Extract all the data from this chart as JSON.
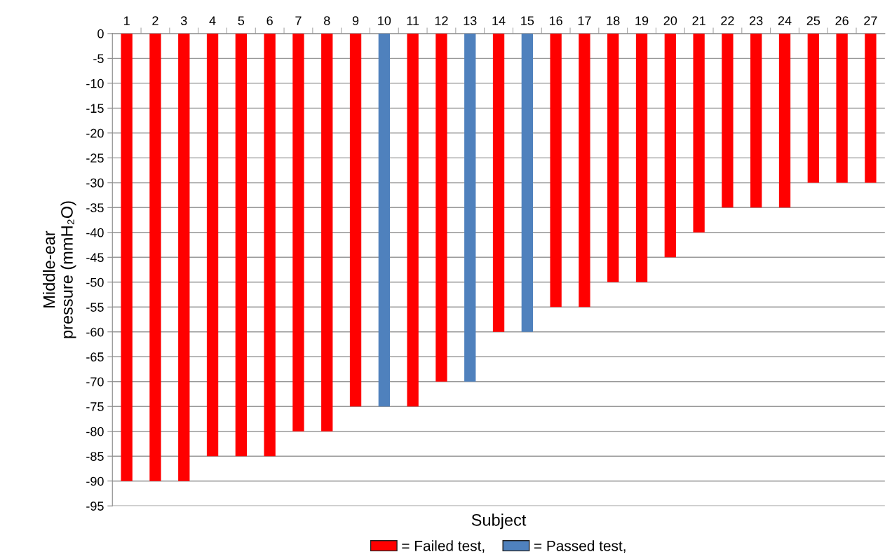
{
  "chart_data": {
    "type": "bar",
    "xlabel": "Subject",
    "ylabel": "Middle-ear\npressure (mmH₂O)",
    "categories": [
      "1",
      "2",
      "3",
      "4",
      "5",
      "6",
      "7",
      "8",
      "9",
      "10",
      "11",
      "12",
      "13",
      "14",
      "15",
      "16",
      "17",
      "18",
      "19",
      "20",
      "21",
      "22",
      "23",
      "24",
      "25",
      "26",
      "27"
    ],
    "stacked": true,
    "series": [
      {
        "name": "= Failed test,",
        "color": "#ff0000",
        "values": [
          -90,
          -90,
          -90,
          -85,
          -85,
          -85,
          -80,
          -80,
          -75,
          null,
          -75,
          -70,
          null,
          -60,
          null,
          -55,
          -55,
          -50,
          -50,
          -45,
          -40,
          -35,
          -35,
          -35,
          -30,
          -30,
          -30
        ]
      },
      {
        "name": "= Passed test,",
        "color": "#4f81bd",
        "values": [
          null,
          null,
          null,
          null,
          null,
          null,
          null,
          null,
          null,
          -75,
          null,
          null,
          -70,
          null,
          -60,
          null,
          null,
          null,
          null,
          null,
          null,
          null,
          null,
          null,
          null,
          null,
          null
        ]
      }
    ],
    "ylim": [
      -95,
      0
    ],
    "yticks": [
      -95,
      -90,
      -85,
      -80,
      -75,
      -70,
      -65,
      -60,
      -55,
      -50,
      -45,
      -40,
      -35,
      -30,
      -25,
      -20,
      -15,
      -10,
      -5,
      0
    ],
    "grid": "y",
    "legend": "bottom"
  }
}
